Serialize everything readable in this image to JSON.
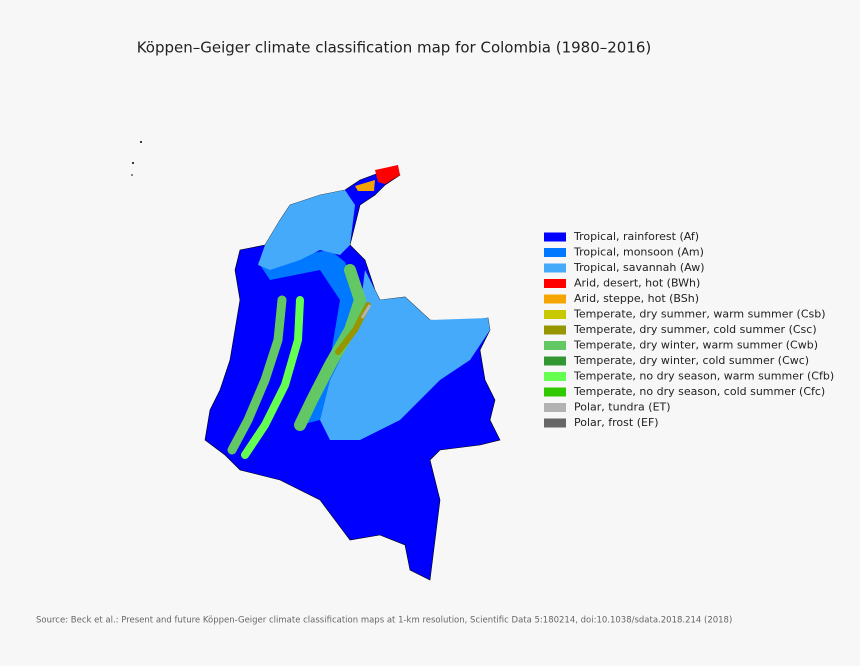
{
  "title": "Köppen–Geiger climate classification map for Colombia (1980–2016)",
  "legend": {
    "items": [
      {
        "label": "Tropical, rainforest (Af)",
        "color": "#0000ff"
      },
      {
        "label": "Tropical, monsoon (Am)",
        "color": "#0078ff"
      },
      {
        "label": "Tropical, savannah (Aw)",
        "color": "#46aafa"
      },
      {
        "label": "Arid, desert, hot (BWh)",
        "color": "#ff0000"
      },
      {
        "label": "Arid, steppe, hot (BSh)",
        "color": "#f5a500"
      },
      {
        "label": "Temperate, dry summer, warm summer (Csb)",
        "color": "#c8c800"
      },
      {
        "label": "Temperate, dry summer, cold summer (Csc)",
        "color": "#969600"
      },
      {
        "label": "Temperate, dry winter, warm summer (Cwb)",
        "color": "#63c764"
      },
      {
        "label": "Temperate, dry winter, cold summer (Cwc)",
        "color": "#329632"
      },
      {
        "label": "Temperate, no dry season, warm summer (Cfb)",
        "color": "#64ff50"
      },
      {
        "label": "Temperate, no dry season, cold summer (Cfc)",
        "color": "#32c800"
      },
      {
        "label": "Polar, tundra (ET)",
        "color": "#b2b2b2"
      },
      {
        "label": "Polar, frost (EF)",
        "color": "#666666"
      }
    ]
  },
  "source": "Source: Beck et al.: Present and future Köppen-Geiger climate classification maps at 1-km resolution, Scientific Data 5:180214, doi:10.1038/sdata.2018.214 (2018)"
}
